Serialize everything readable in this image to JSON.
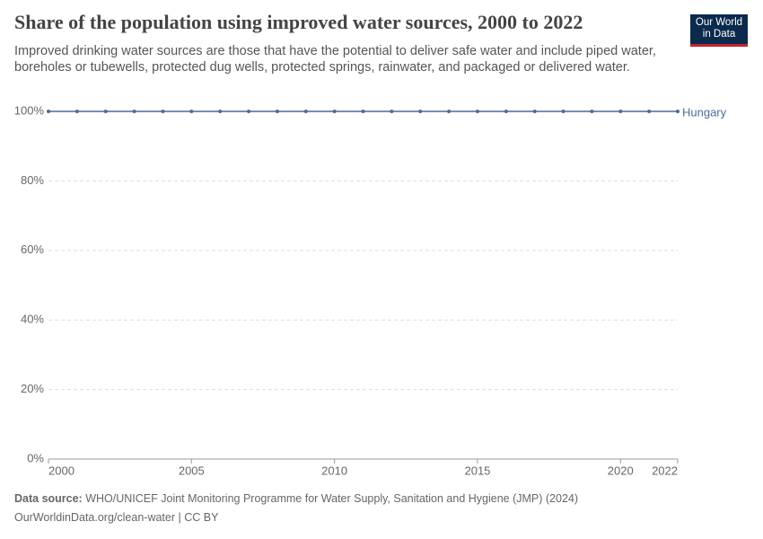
{
  "chart_data": {
    "type": "line",
    "title": "Share of the population using improved water sources, 2000 to 2022",
    "subtitle": "Improved drinking water sources are those that have the potential to deliver safe water and include piped water, boreholes or tubewells, protected dug wells, protected springs, rainwater, and packaged or delivered water.",
    "logo": [
      "Our World",
      "in Data"
    ],
    "x": [
      2000,
      2001,
      2002,
      2003,
      2004,
      2005,
      2006,
      2007,
      2008,
      2009,
      2010,
      2011,
      2012,
      2013,
      2014,
      2015,
      2016,
      2017,
      2018,
      2019,
      2020,
      2021,
      2022
    ],
    "series": [
      {
        "name": "Hungary",
        "color": "#4c6a9c",
        "values": [
          100,
          100,
          100,
          100,
          100,
          100,
          100,
          100,
          100,
          100,
          100,
          100,
          100,
          100,
          100,
          100,
          100,
          100,
          100,
          100,
          100,
          100,
          100
        ]
      }
    ],
    "xlim": [
      2000,
      2022
    ],
    "xticks": [
      2000,
      2005,
      2010,
      2015,
      2020,
      2022
    ],
    "ylim": [
      0,
      100
    ],
    "yticks": [
      {
        "value": 0,
        "label": "0%"
      },
      {
        "value": 20,
        "label": "20%"
      },
      {
        "value": 40,
        "label": "40%"
      },
      {
        "value": 60,
        "label": "60%"
      },
      {
        "value": 80,
        "label": "80%"
      },
      {
        "value": 100,
        "label": "100%"
      }
    ],
    "grid": true,
    "source_label": "Data source:",
    "source": "WHO/UNICEF Joint Monitoring Programme for Water Supply, Sanitation and Hygiene (JMP) (2024)",
    "footer": "OurWorldinData.org/clean-water | CC BY"
  }
}
